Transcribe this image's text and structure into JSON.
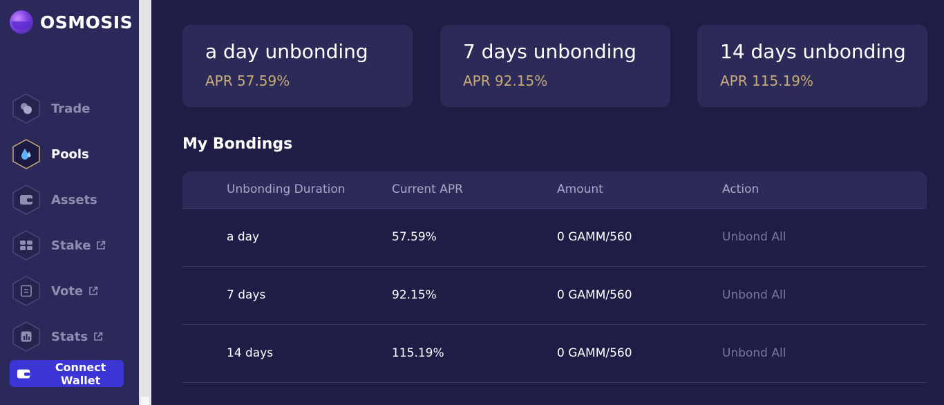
{
  "brand": {
    "name": "OSMOSIS"
  },
  "nav": [
    {
      "label": "Trade",
      "icon": "trade-icon",
      "active": false,
      "external": false
    },
    {
      "label": "Pools",
      "icon": "pools-icon",
      "active": true,
      "external": false
    },
    {
      "label": "Assets",
      "icon": "assets-icon",
      "active": false,
      "external": false
    },
    {
      "label": "Stake",
      "icon": "stake-icon",
      "active": false,
      "external": true
    },
    {
      "label": "Vote",
      "icon": "vote-icon",
      "active": false,
      "external": true
    },
    {
      "label": "Stats",
      "icon": "stats-icon",
      "active": false,
      "external": true
    }
  ],
  "connect_wallet": {
    "label": "Connect Wallet"
  },
  "cards": [
    {
      "title": "a day unbonding",
      "apr": "APR 57.59%"
    },
    {
      "title": "7 days unbonding",
      "apr": "APR 92.15%"
    },
    {
      "title": "14 days unbonding",
      "apr": "APR 115.19%"
    }
  ],
  "bondings": {
    "title": "My Bondings",
    "columns": [
      "Unbonding Duration",
      "Current APR",
      "Amount",
      "Action"
    ],
    "rows": [
      {
        "duration": "a day",
        "apr": "57.59%",
        "amount": "0 GAMM/560",
        "action": "Unbond All"
      },
      {
        "duration": "7 days",
        "apr": "92.15%",
        "amount": "0 GAMM/560",
        "action": "Unbond All"
      },
      {
        "duration": "14 days",
        "apr": "115.19%",
        "amount": "0 GAMM/560",
        "action": "Unbond All"
      }
    ]
  },
  "colors": {
    "background": "#1f1d46",
    "sidebar": "#2a2959",
    "card": "#2c2a58",
    "apr_gold": "#c9ab77",
    "connect_button": "#3b35d6"
  }
}
